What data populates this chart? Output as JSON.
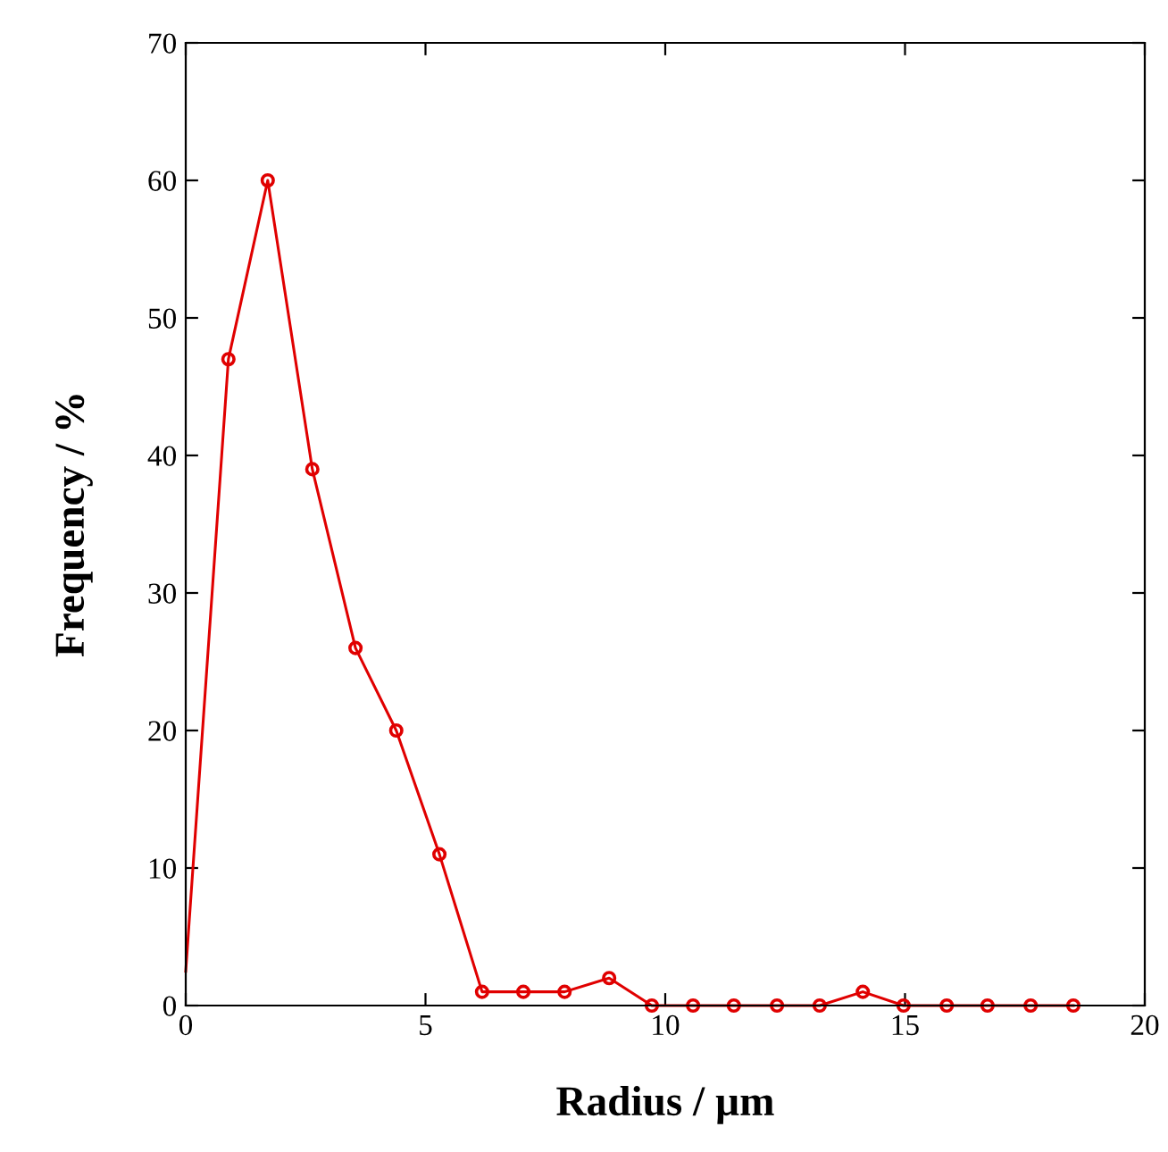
{
  "chart_data": {
    "type": "line",
    "xlabel": "Radius / µm",
    "ylabel": "Frequency / %",
    "xlim": [
      0,
      20
    ],
    "ylim": [
      0,
      70
    ],
    "xticks": [
      0,
      5,
      10,
      15,
      20
    ],
    "yticks": [
      0,
      10,
      20,
      30,
      40,
      50,
      60,
      70
    ],
    "grid": false,
    "legend": false,
    "marker": "circle",
    "line_style": "solid",
    "series": [
      {
        "color": "#e00000",
        "x": [
          0,
          0.89,
          1.71,
          2.64,
          3.54,
          4.39,
          5.29,
          6.18,
          7.04,
          7.9,
          8.83,
          9.72,
          10.58,
          11.43,
          12.33,
          13.22,
          14.12,
          14.97,
          15.87,
          16.72,
          17.62,
          18.51
        ],
        "values": [
          2.5,
          47,
          60,
          39,
          26,
          20,
          11,
          1,
          1,
          1,
          2,
          0,
          0,
          0,
          0,
          0,
          1,
          0,
          0,
          0,
          0,
          0
        ]
      }
    ]
  }
}
